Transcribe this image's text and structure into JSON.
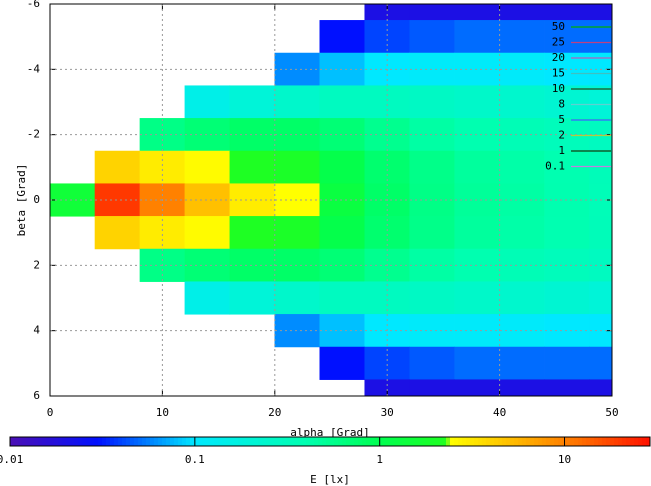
{
  "chart_data": {
    "type": "heatmap",
    "xlabel": "alpha [Grad]",
    "ylabel": "beta [Grad]",
    "colorbar_label": "E [lx]",
    "x": [
      2,
      6,
      10,
      14,
      18,
      22,
      26,
      30,
      34,
      38,
      42,
      46,
      50
    ],
    "y": [
      -6,
      -5,
      -4,
      -3,
      -2,
      -1,
      0,
      1,
      2,
      3,
      4,
      5,
      6
    ],
    "z": [
      [
        null,
        null,
        null,
        null,
        null,
        null,
        null,
        0.02,
        0.02,
        0.02,
        0.02,
        0.02,
        0.02
      ],
      [
        null,
        null,
        null,
        null,
        null,
        null,
        0.03,
        0.04,
        0.045,
        0.05,
        0.05,
        0.05,
        0.05
      ],
      [
        null,
        null,
        null,
        null,
        null,
        0.06,
        0.08,
        0.1,
        0.11,
        0.11,
        0.11,
        0.1,
        0.1
      ],
      [
        null,
        null,
        null,
        0.15,
        0.2,
        0.25,
        0.3,
        0.3,
        0.28,
        0.26,
        0.24,
        0.22,
        0.2
      ],
      [
        null,
        null,
        0.6,
        0.7,
        0.8,
        0.8,
        0.7,
        0.55,
        0.45,
        0.4,
        0.36,
        0.33,
        0.3
      ],
      [
        null,
        4,
        3,
        2.5,
        2.2,
        2,
        1.1,
        0.75,
        0.58,
        0.48,
        0.43,
        0.39,
        0.34
      ],
      [
        1.5,
        20,
        10,
        5,
        3,
        2.4,
        1.3,
        0.8,
        0.6,
        0.5,
        0.45,
        0.4,
        0.35
      ],
      [
        null,
        4,
        3,
        2.5,
        2.2,
        2,
        1.1,
        0.75,
        0.58,
        0.48,
        0.43,
        0.39,
        0.34
      ],
      [
        null,
        null,
        0.6,
        0.7,
        0.8,
        0.8,
        0.7,
        0.55,
        0.45,
        0.4,
        0.36,
        0.33,
        0.3
      ],
      [
        null,
        null,
        null,
        0.15,
        0.2,
        0.25,
        0.3,
        0.3,
        0.28,
        0.26,
        0.24,
        0.22,
        0.2
      ],
      [
        null,
        null,
        null,
        null,
        null,
        0.06,
        0.08,
        0.1,
        0.11,
        0.11,
        0.11,
        0.1,
        0.1
      ],
      [
        null,
        null,
        null,
        null,
        null,
        null,
        0.03,
        0.04,
        0.045,
        0.05,
        0.05,
        0.05,
        0.05
      ],
      [
        null,
        null,
        null,
        null,
        null,
        null,
        null,
        0.02,
        0.02,
        0.02,
        0.02,
        0.02,
        0.02
      ]
    ],
    "xlim": [
      0,
      50
    ],
    "xticks": [
      0,
      10,
      20,
      30,
      40,
      50
    ],
    "ylim": [
      -6,
      6
    ],
    "y_reversed": true,
    "yticks": [
      -6,
      -4,
      -2,
      0,
      2,
      4,
      6
    ],
    "grid": true,
    "colorbar_lim": [
      0.01,
      29
    ],
    "colorbar_log": true,
    "colorbar_ticks": [
      0.01,
      0.1,
      1,
      10
    ],
    "colormap": [
      [
        0.01,
        "#4b0fb5"
      ],
      [
        0.03,
        "#0010ff"
      ],
      [
        0.1,
        "#00e8ff"
      ],
      [
        0.4,
        "#00ffb0"
      ],
      [
        1,
        "#00ff50"
      ],
      [
        2.3,
        "#20ff20"
      ],
      [
        2.4,
        "#ffff00"
      ],
      [
        5,
        "#ffc000"
      ],
      [
        12,
        "#ff7000"
      ],
      [
        29,
        "#ff1000"
      ]
    ],
    "contour_levels": [
      {
        "name": "50",
        "color": "#00b000"
      },
      {
        "name": "25",
        "color": "#c04080"
      },
      {
        "name": "20",
        "color": "#b060c0"
      },
      {
        "name": "15",
        "color": "#40c0c0"
      },
      {
        "name": "10",
        "color": "#205020"
      },
      {
        "name": "8",
        "color": "#60d0d0"
      },
      {
        "name": "5",
        "color": "#4060ff"
      },
      {
        "name": "2",
        "color": "#b0d040"
      },
      {
        "name": "1",
        "color": "#104010"
      },
      {
        "name": "0.1",
        "color": "#c080e0"
      }
    ],
    "legend": "top-right"
  }
}
